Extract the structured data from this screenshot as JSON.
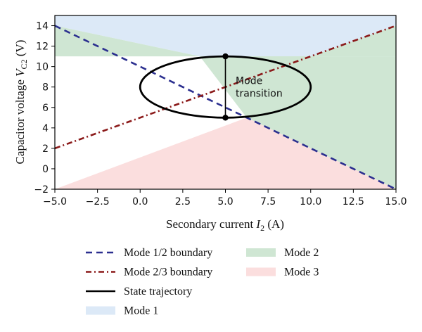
{
  "chart_data": {
    "type": "line",
    "xlabel": "Secondary current I₂ (A)",
    "ylabel": "Capacitor voltage V_C2 (V)",
    "xlim": [
      -5.0,
      15.0
    ],
    "ylim": [
      -2,
      15
    ],
    "x_ticks": [
      -5.0,
      -2.5,
      0.0,
      2.5,
      5.0,
      7.5,
      10.0,
      12.5,
      15.0
    ],
    "x_tick_labels": [
      "−5.0",
      "−2.5",
      "0.0",
      "2.5",
      "5.0",
      "7.5",
      "10.0",
      "12.5",
      "15.0"
    ],
    "y_ticks": [
      -2,
      0,
      2,
      4,
      6,
      8,
      10,
      12,
      14
    ],
    "y_tick_labels": [
      "−2",
      "0",
      "2",
      "4",
      "6",
      "8",
      "10",
      "12",
      "14"
    ],
    "grid": false,
    "legend_position": "below",
    "series": [
      {
        "name": "Mode 1/2 boundary",
        "style": "dashed",
        "color": "#2b2f8f",
        "points": [
          [
            -5.0,
            14.0
          ],
          [
            15.0,
            -2.0
          ]
        ]
      },
      {
        "name": "Mode 2/3 boundary",
        "style": "dashdot",
        "color": "#8b1a1a",
        "points": [
          [
            -5.0,
            2.0
          ],
          [
            15.0,
            14.0
          ]
        ]
      },
      {
        "name": "State trajectory",
        "style": "solid",
        "color": "#000000",
        "ellipse": {
          "center": [
            5.0,
            8.0
          ],
          "rx": 5.0,
          "ry": 3.0
        },
        "segment": [
          [
            5.0,
            11.0
          ],
          [
            5.0,
            5.0
          ]
        ]
      }
    ],
    "regions": [
      {
        "name": "Mode 1",
        "color": "#dce9f7",
        "polygon": [
          [
            -5.0,
            14.0
          ],
          [
            -5.0,
            15.0
          ],
          [
            15.0,
            15.0
          ],
          [
            15.0,
            11.0
          ],
          [
            3.5,
            11.0
          ]
        ]
      },
      {
        "name": "Mode 2",
        "color": "#cfe6d3",
        "polygon": [
          [
            -5.0,
            11.0
          ],
          [
            -5.0,
            14.0
          ],
          [
            3.5,
            11.0
          ]
        ]
      },
      {
        "name": "Mode 2",
        "color": "#cfe6d3",
        "polygon": [
          [
            3.5,
            11.0
          ],
          [
            15.0,
            11.0
          ],
          [
            15.0,
            14.0
          ],
          [
            10.0,
            11.0
          ],
          [
            6.25,
            8.75
          ]
        ]
      },
      {
        "name": "Mode 2",
        "color": "#cfe6d3",
        "polygon": [
          [
            15.0,
            11.0
          ],
          [
            15.0,
            -2.0
          ],
          [
            6.25,
            5.0
          ],
          [
            3.5,
            11.0
          ]
        ]
      },
      {
        "name": "Mode 3",
        "color": "#fbdede",
        "polygon": [
          [
            -5.0,
            -2.0
          ],
          [
            15.0,
            -2.0
          ],
          [
            6.25,
            5.0
          ]
        ]
      }
    ],
    "markers": [
      [
        5.0,
        11.0
      ],
      [
        5.0,
        5.0
      ]
    ],
    "annotations": [
      {
        "text_lines": [
          "Mode",
          "transition"
        ],
        "at": [
          5.6,
          8.0
        ]
      }
    ]
  },
  "legend": [
    {
      "label": "Mode 1/2 boundary",
      "kind": "line",
      "style": "dashed",
      "color": "#2b2f8f"
    },
    {
      "label": "Mode 2/3 boundary",
      "kind": "line",
      "style": "dashdot",
      "color": "#8b1a1a"
    },
    {
      "label": "State trajectory",
      "kind": "line",
      "style": "solid",
      "color": "#000000"
    },
    {
      "label": "Mode 1",
      "kind": "patch",
      "color": "#dce9f7"
    },
    {
      "label": "Mode 2",
      "kind": "patch",
      "color": "#cfe6d3"
    },
    {
      "label": "Mode 3",
      "kind": "patch",
      "color": "#fbdede"
    }
  ]
}
